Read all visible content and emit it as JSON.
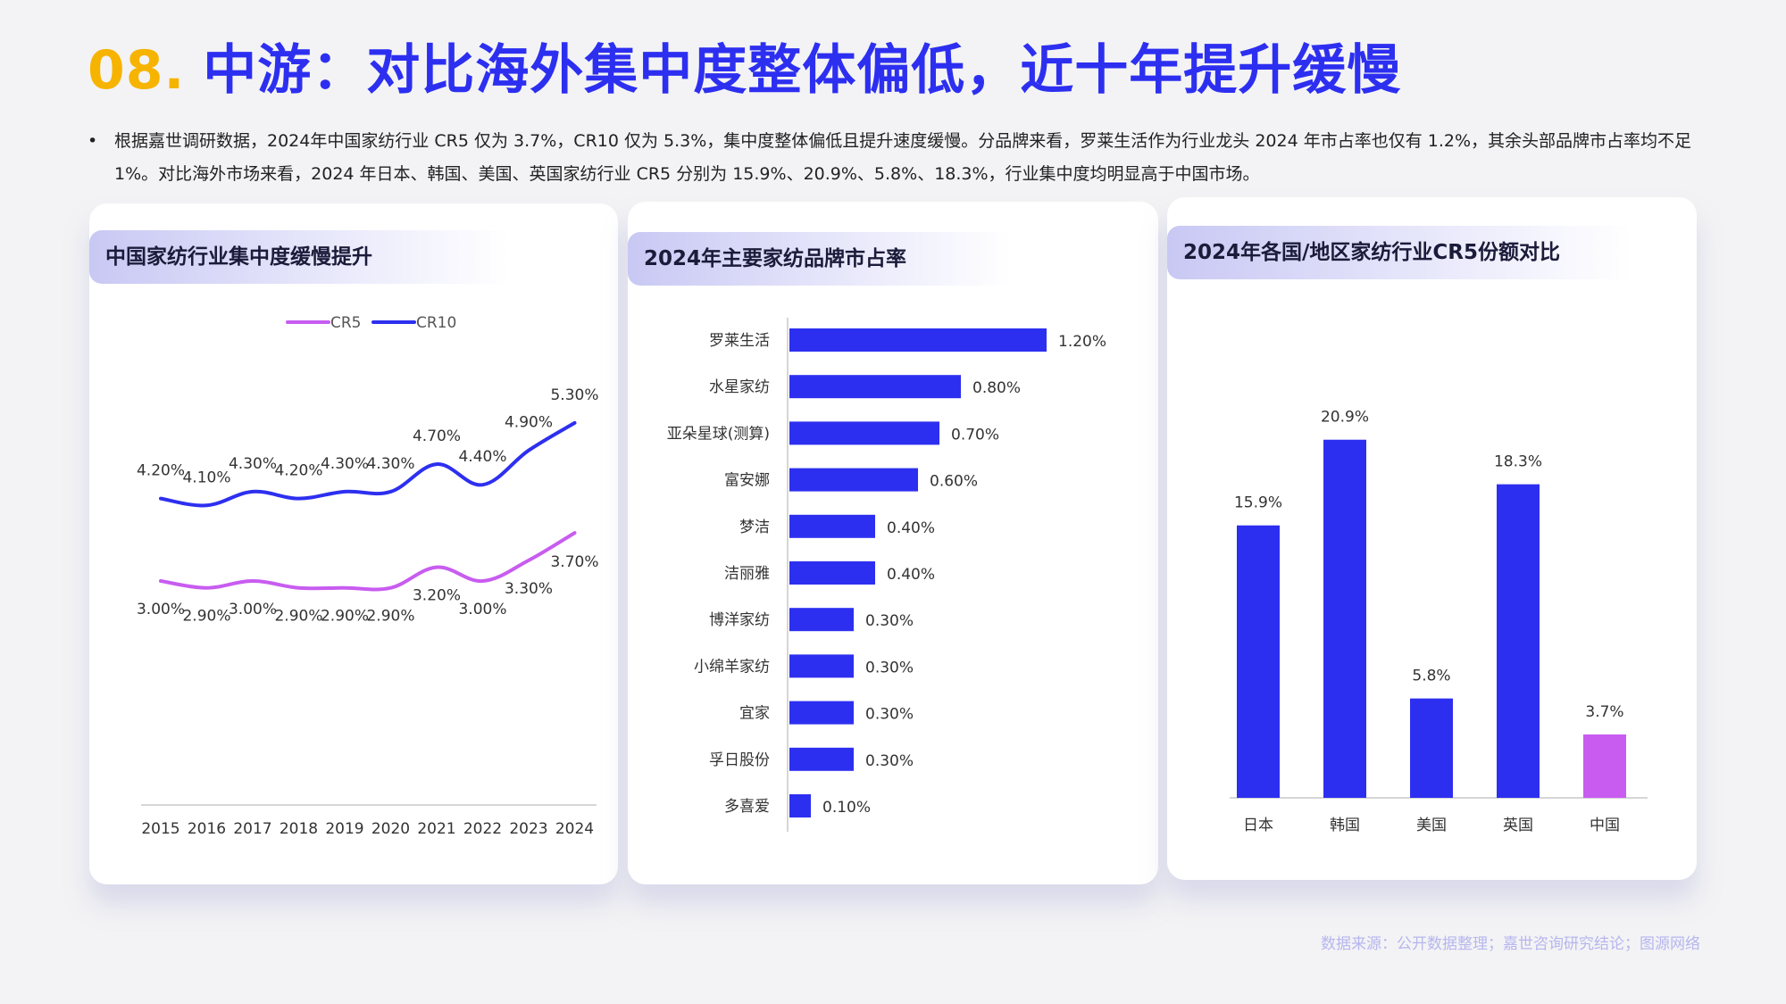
{
  "title": {
    "number": "08.",
    "text": "中游：对比海外集中度整体偏低，近十年提升缓慢"
  },
  "bullet": {
    "marker": "•",
    "text": "根据嘉世调研数据，2024年中国家纺行业 CR5 仅为 3.7%，CR10 仅为 5.3%，集中度整体偏低且提升速度缓慢。分品牌来看，罗莱生活作为行业龙头 2024 年市占率也仅有 1.2%，其余头部品牌市占率均不足1%。对比海外市场来看，2024 年日本、韩国、美国、英国家纺行业 CR5 分别为 15.9%、20.9%、5.8%、18.3%，行业集中度均明显高于中国市场。"
  },
  "colors": {
    "blue": "#2d2ff0",
    "purple": "#c85cf0",
    "orange": "#f6b400"
  },
  "chart_data": [
    {
      "type": "line",
      "title": "中国家纺行业集中度缓慢提升",
      "x": [
        "2015",
        "2016",
        "2017",
        "2018",
        "2019",
        "2020",
        "2021",
        "2022",
        "2023",
        "2024"
      ],
      "series": [
        {
          "name": "CR5",
          "color": "#c85cf0",
          "values": [
            3.0,
            2.9,
            3.0,
            2.9,
            2.9,
            2.9,
            3.2,
            3.0,
            3.3,
            3.7
          ],
          "labels": [
            "3.00%",
            "2.90%",
            "3.00%",
            "2.90%",
            "2.90%",
            "2.90%",
            "3.20%",
            "3.00%",
            "3.30%",
            "3.70%"
          ]
        },
        {
          "name": "CR10",
          "color": "#2d2ff0",
          "values": [
            4.2,
            4.1,
            4.3,
            4.2,
            4.3,
            4.3,
            4.7,
            4.4,
            4.9,
            5.3
          ],
          "labels": [
            "4.20%",
            "4.10%",
            "4.30%",
            "4.20%",
            "4.30%",
            "4.30%",
            "4.70%",
            "4.40%",
            "4.90%",
            "5.30%"
          ]
        }
      ],
      "legend": "top-center",
      "grid": false
    },
    {
      "type": "bar",
      "orientation": "horizontal",
      "title": "2024年主要家纺品牌市占率",
      "categories": [
        "罗莱生活",
        "水星家纺",
        "亚朵星球(测算)",
        "富安娜",
        "梦洁",
        "洁丽雅",
        "博洋家纺",
        "小绵羊家纺",
        "宜家",
        "孚日股份",
        "多喜爱"
      ],
      "values": [
        1.2,
        0.8,
        0.7,
        0.6,
        0.4,
        0.4,
        0.3,
        0.3,
        0.3,
        0.3,
        0.1
      ],
      "labels": [
        "1.20%",
        "0.80%",
        "0.70%",
        "0.60%",
        "0.40%",
        "0.40%",
        "0.30%",
        "0.30%",
        "0.30%",
        "0.30%",
        "0.10%"
      ],
      "color": "#2d2ff0",
      "grid": false
    },
    {
      "type": "bar",
      "title": "2024年各国/地区家纺行业CR5份额对比",
      "categories": [
        "日本",
        "韩国",
        "美国",
        "英国",
        "中国"
      ],
      "values": [
        15.9,
        20.9,
        5.8,
        18.3,
        3.7
      ],
      "labels": [
        "15.9%",
        "20.9%",
        "5.8%",
        "18.3%",
        "3.7%"
      ],
      "colors": [
        "#2d2ff0",
        "#2d2ff0",
        "#2d2ff0",
        "#2d2ff0",
        "#c85cf0"
      ],
      "grid": false
    }
  ],
  "source": "数据来源：公开数据整理；嘉世咨询研究结论；图源网络"
}
